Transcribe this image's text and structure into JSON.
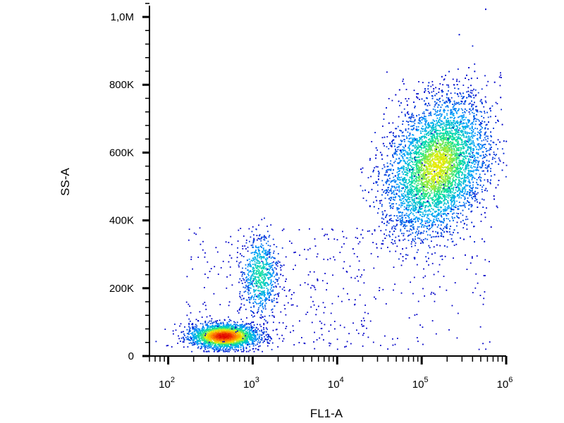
{
  "chart_data": {
    "type": "scatter",
    "title": "",
    "xlabel": "FL1-A",
    "ylabel": "SS-A",
    "x_scale": "log",
    "xlim": [
      60,
      1000000
    ],
    "ylim": [
      0,
      1050000
    ],
    "x_ticks": [
      {
        "value": 100,
        "base": "10",
        "exp": "2"
      },
      {
        "value": 1000,
        "base": "10",
        "exp": "3"
      },
      {
        "value": 10000,
        "base": "10",
        "exp": "4"
      },
      {
        "value": 100000,
        "base": "10",
        "exp": "5"
      },
      {
        "value": 1000000,
        "base": "10",
        "exp": "6"
      }
    ],
    "y_ticks": [
      {
        "value": 0,
        "label": "0"
      },
      {
        "value": 200000,
        "label": "200K"
      },
      {
        "value": 400000,
        "label": "400K"
      },
      {
        "value": 600000,
        "label": "600K"
      },
      {
        "value": 800000,
        "label": "800K"
      },
      {
        "value": 1000000,
        "label": "1,0M"
      }
    ],
    "grid": false,
    "legend": "none",
    "color_scale": [
      "#0000c8",
      "#00a0ff",
      "#00e0a0",
      "#f0f000",
      "#ff8000",
      "#e00000"
    ],
    "populations": [
      {
        "x_center": 450,
        "y_center": 60000,
        "x_spread_decades": 0.2,
        "y_spread": 18000,
        "count": 2600,
        "peak_density": 1.0
      },
      {
        "x_center": 1200,
        "y_center": 240000,
        "x_spread_decades": 0.11,
        "y_spread": 60000,
        "count": 700,
        "peak_density": 0.4
      },
      {
        "x_center": 150000,
        "y_center": 560000,
        "x_spread_decades": 0.3,
        "y_spread": 95000,
        "count": 6500,
        "peak_density": 0.6
      }
    ],
    "sparse_events": 550
  }
}
